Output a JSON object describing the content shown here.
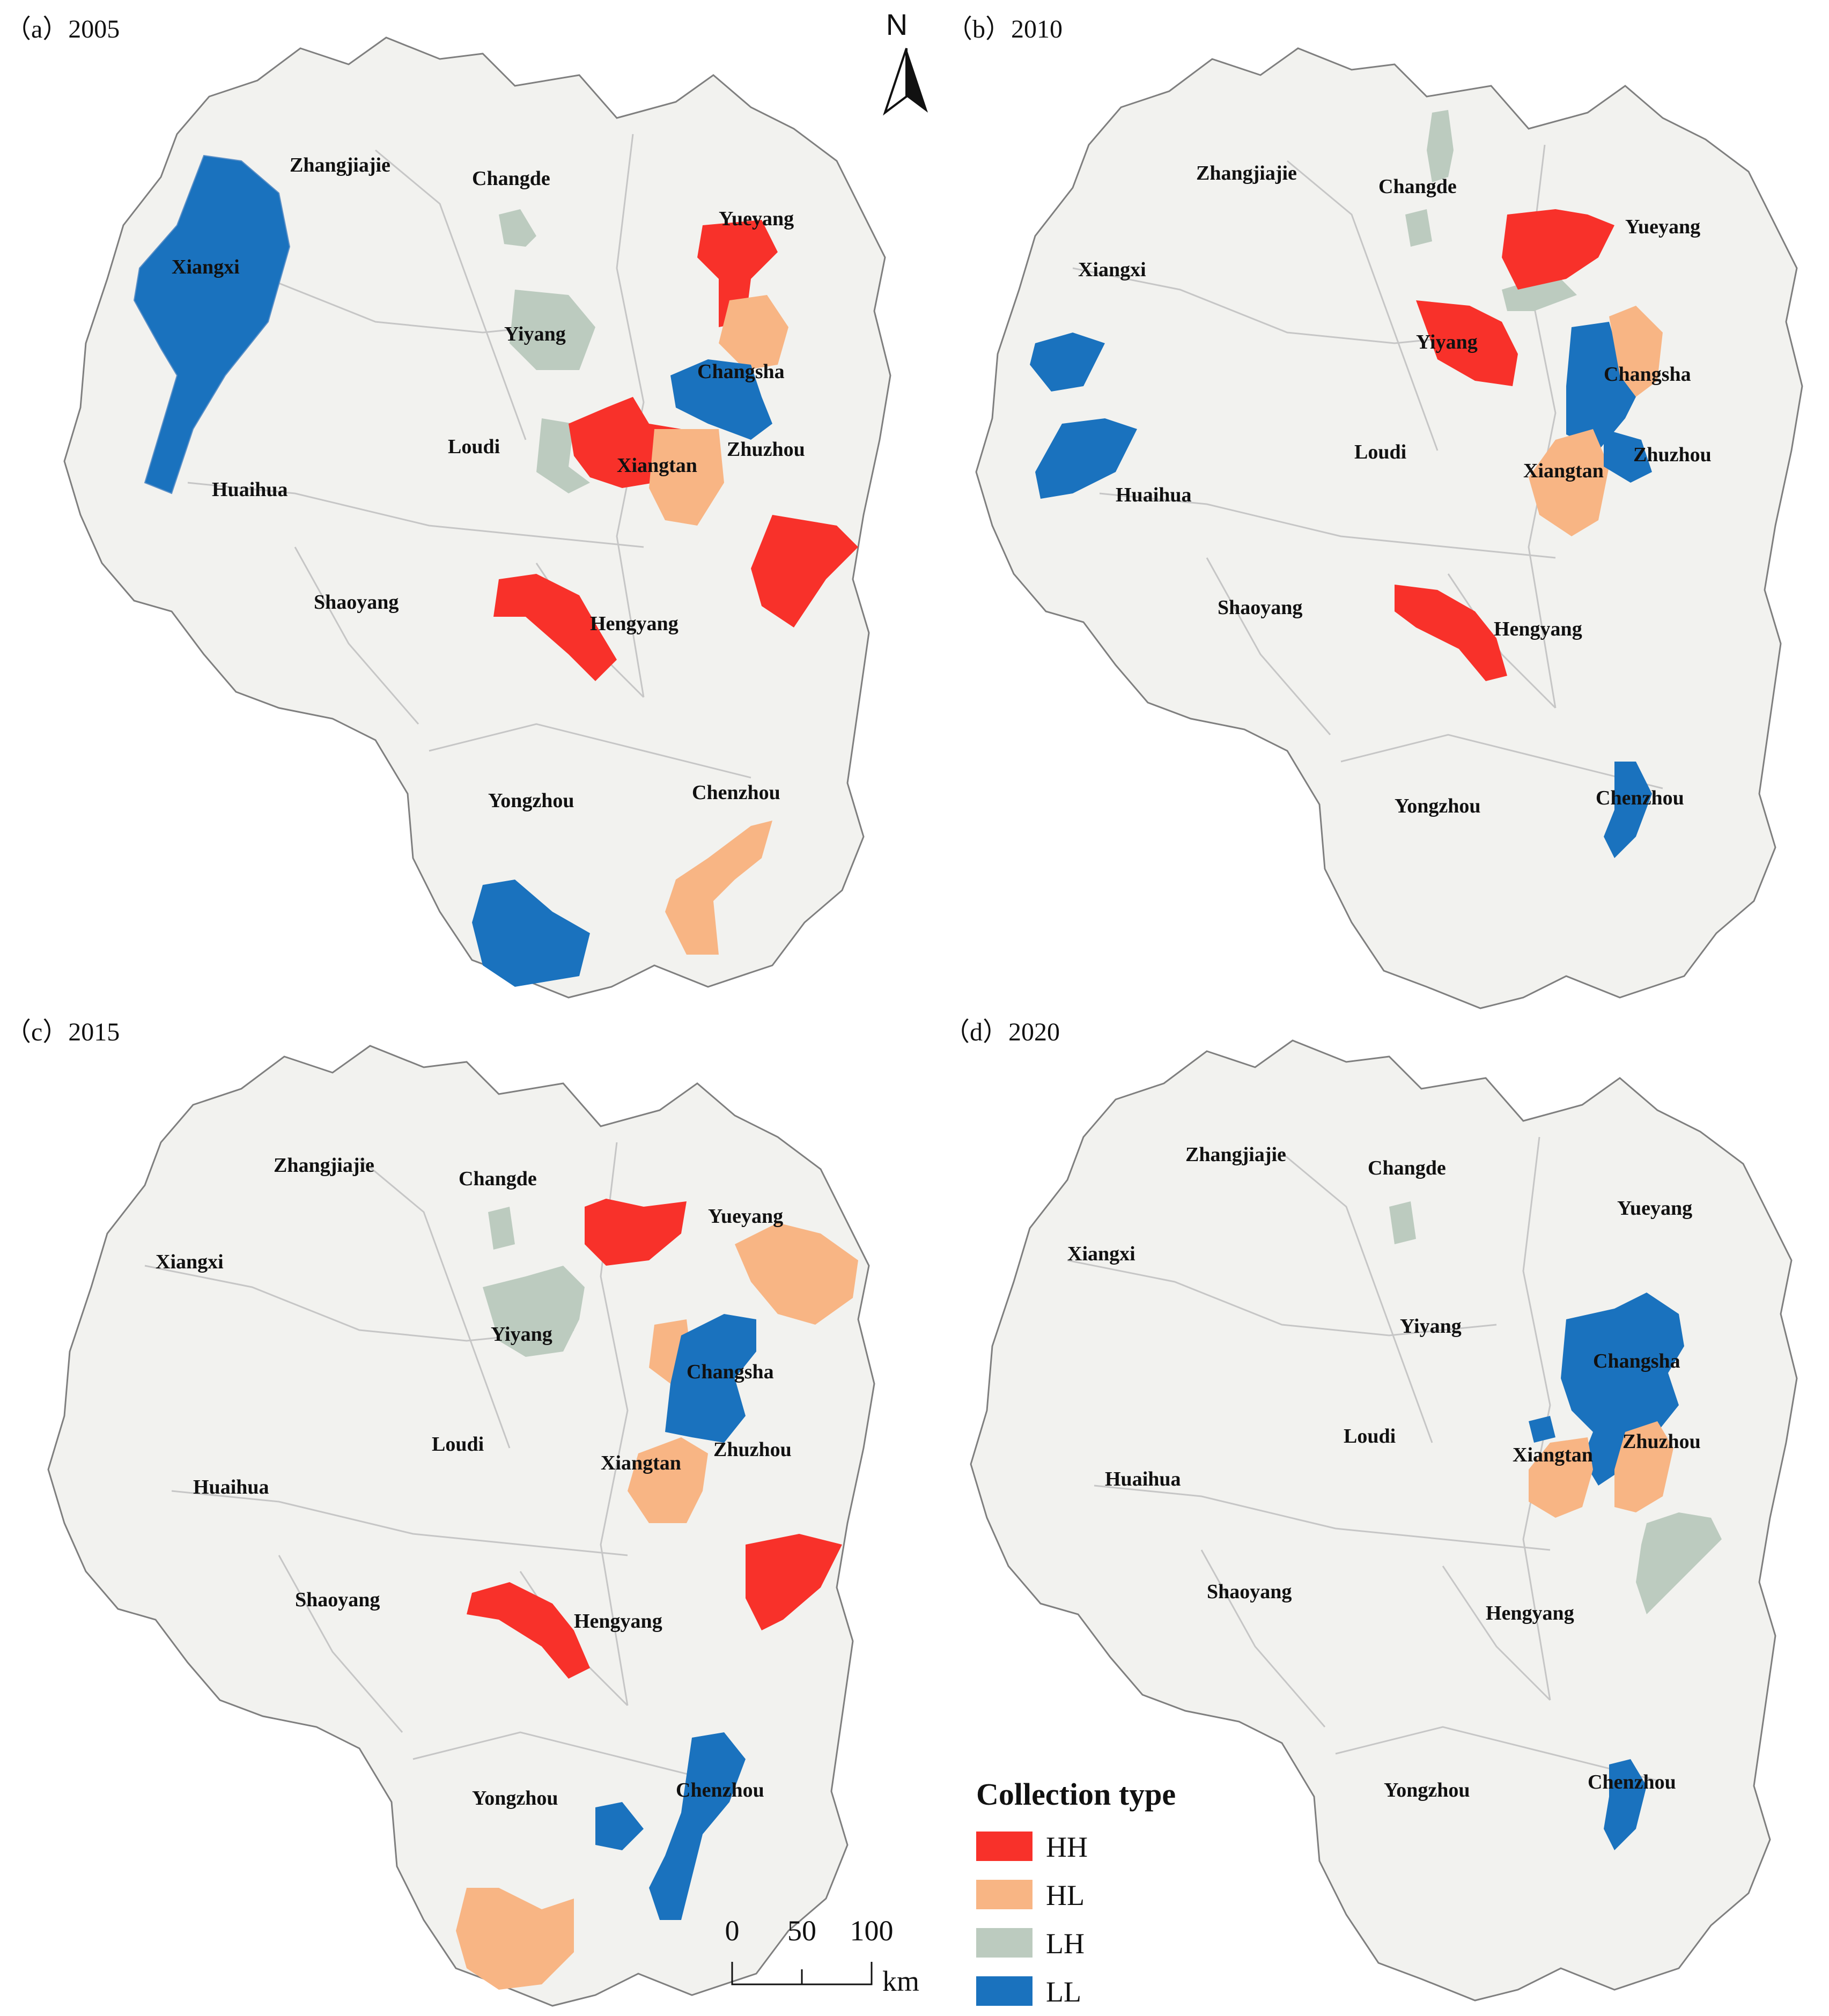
{
  "colors": {
    "HH": "#f8312a",
    "HL": "#f8b584",
    "LH": "#bccbbf",
    "LL": "#1a72be",
    "base": "#f2f2ef",
    "border": "#7f7f7f",
    "inner": "#c6c6c6"
  },
  "panels": [
    {
      "id": "a",
      "title": "（a）2005",
      "labels": {
        "Zhangjiajie": "Zhangjiajie",
        "Changde": "Changde",
        "Yueyang": "Yueyang",
        "Xiangxi": "Xiangxi",
        "Yiyang": "Yiyang",
        "Changsha": "Changsha",
        "Loudi": "Loudi",
        "Xiangtan": "Xiangtan",
        "Zhuzhou": "Zhuzhou",
        "Huaihua": "Huaihua",
        "Shaoyang": "Shaoyang",
        "Hengyang": "Hengyang",
        "Yongzhou": "Yongzhou",
        "Chenzhou": "Chenzhou"
      }
    },
    {
      "id": "b",
      "title": "（b）2010",
      "labels": {
        "Zhangjiajie": "Zhangjiajie",
        "Changde": "Changde",
        "Yueyang": "Yueyang",
        "Xiangxi": "Xiangxi",
        "Yiyang": "Yiyang",
        "Changsha": "Changsha",
        "Loudi": "Loudi",
        "Xiangtan": "Xiangtan",
        "Zhuzhou": "Zhuzhou",
        "Huaihua": "Huaihua",
        "Shaoyang": "Shaoyang",
        "Hengyang": "Hengyang",
        "Yongzhou": "Yongzhou",
        "Chenzhou": "Chenzhou"
      }
    },
    {
      "id": "c",
      "title": "（c）2015",
      "labels": {
        "Zhangjiajie": "Zhangjiajie",
        "Changde": "Changde",
        "Yueyang": "Yueyang",
        "Xiangxi": "Xiangxi",
        "Yiyang": "Yiyang",
        "Changsha": "Changsha",
        "Loudi": "Loudi",
        "Xiangtan": "Xiangtan",
        "Zhuzhou": "Zhuzhou",
        "Huaihua": "Huaihua",
        "Shaoyang": "Shaoyang",
        "Hengyang": "Hengyang",
        "Yongzhou": "Yongzhou",
        "Chenzhou": "Chenzhou"
      }
    },
    {
      "id": "d",
      "title": "（d）2020",
      "labels": {
        "Zhangjiajie": "Zhangjiajie",
        "Changde": "Changde",
        "Yueyang": "Yueyang",
        "Xiangxi": "Xiangxi",
        "Yiyang": "Yiyang",
        "Changsha": "Changsha",
        "Loudi": "Loudi",
        "Xiangtan": "Xiangtan",
        "Zhuzhou": "Zhuzhou",
        "Huaihua": "Huaihua",
        "Shaoyang": "Shaoyang",
        "Hengyang": "Hengyang",
        "Yongzhou": "Yongzhou",
        "Chenzhou": "Chenzhou"
      }
    }
  ],
  "north_arrow": {
    "label": "N"
  },
  "legend": {
    "title": "Collection type",
    "items": [
      {
        "key": "HH",
        "label": "HH"
      },
      {
        "key": "HL",
        "label": "HL"
      },
      {
        "key": "LH",
        "label": "LH"
      },
      {
        "key": "LL",
        "label": "LL"
      }
    ]
  },
  "scale_bar": {
    "ticks": [
      "0",
      "50",
      "100"
    ],
    "unit": "km"
  }
}
